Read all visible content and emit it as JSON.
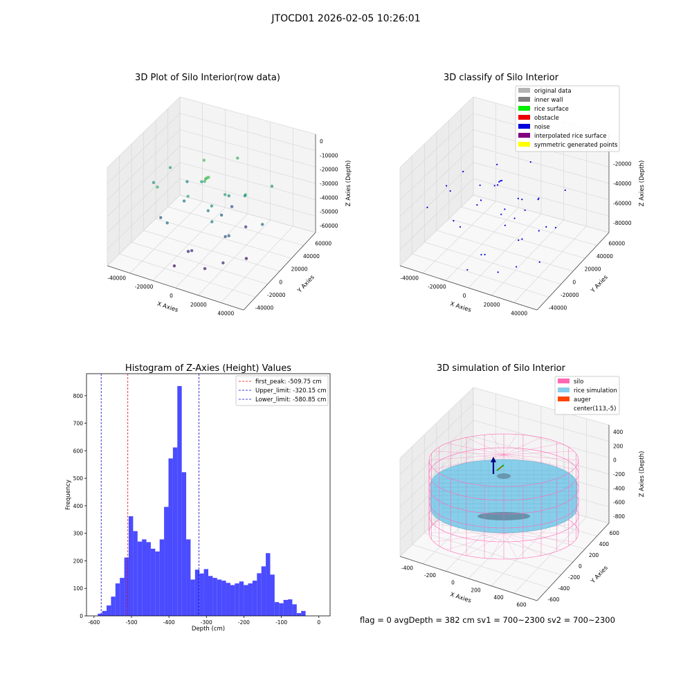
{
  "figure": {
    "title": "JTOCD01 2026-02-05 10:26:01",
    "status_line": "flag = 0     avgDepth = 382 cm  sv1 = 700~2300  sv2 = 700~2300"
  },
  "chart_data": [
    {
      "type": "scatter",
      "projection": "3d",
      "title": "3D Plot of Silo Interior(row data)",
      "xlabel": "X Axies",
      "ylabel": "Y Axies",
      "zlabel": "Z Axies (Depth)",
      "xticks": [
        "-40000",
        "-20000",
        "0",
        "20000",
        "40000"
      ],
      "yticks": [
        "-40000",
        "-20000",
        "0",
        "20000",
        "40000",
        "60000"
      ],
      "zticks": [
        "0",
        "-10000",
        "-20000",
        "-30000",
        "-40000",
        "-50000",
        "-60000"
      ],
      "xlim": [
        -50000,
        50000
      ],
      "ylim": [
        -45000,
        65000
      ],
      "zlim": [
        -70000,
        5000
      ],
      "colormap": "viridis",
      "points": [
        {
          "x": -2000,
          "y": 8000,
          "z": -15000
        },
        {
          "x": -2500,
          "y": 7000,
          "z": -15500
        },
        {
          "x": -1500,
          "y": 9000,
          "z": -15200
        },
        {
          "x": -3000,
          "y": 7500,
          "z": -16000
        },
        {
          "x": -40000,
          "y": 5000,
          "z": -30000
        },
        {
          "x": -30000,
          "y": -10000,
          "z": -22000
        },
        {
          "x": -15000,
          "y": 30000,
          "z": -18000
        },
        {
          "x": 0,
          "y": 50000,
          "z": -22000
        },
        {
          "x": 25000,
          "y": 10000,
          "z": -20000
        },
        {
          "x": 30000,
          "y": 40000,
          "z": -28000
        },
        {
          "x": -10000,
          "y": -5000,
          "z": -25000
        },
        {
          "x": 5000,
          "y": 0,
          "z": -30000
        },
        {
          "x": 10000,
          "y": -10000,
          "z": -35000
        },
        {
          "x": -20000,
          "y": 10000,
          "z": -40000
        },
        {
          "x": 0,
          "y": -20000,
          "z": -55000
        },
        {
          "x": 15000,
          "y": 0,
          "z": -50000
        },
        {
          "x": 5000,
          "y": 15000,
          "z": -45000
        },
        {
          "x": -5000,
          "y": -15000,
          "z": -60000
        },
        {
          "x": 12000,
          "y": -25000,
          "z": -62000
        },
        {
          "x": 20000,
          "y": -5000,
          "z": -45000
        },
        {
          "x": -25000,
          "y": 25000,
          "z": -35000
        },
        {
          "x": 35000,
          "y": 15000,
          "z": -42000
        },
        {
          "x": -30000,
          "y": -5000,
          "z": -48000
        },
        {
          "x": 0,
          "y": 5000,
          "z": -38000
        },
        {
          "x": 8000,
          "y": 20000,
          "z": -32000
        },
        {
          "x": -12000,
          "y": 20000,
          "z": -28000
        },
        {
          "x": 18000,
          "y": 25000,
          "z": -55000
        },
        {
          "x": -8000,
          "y": -30000,
          "z": -64000
        },
        {
          "x": 22000,
          "y": -18000,
          "z": -58000
        },
        {
          "x": 3000,
          "y": 35000,
          "z": -50000
        },
        {
          "x": -18000,
          "y": -20000,
          "z": -40000
        },
        {
          "x": 28000,
          "y": 5000,
          "z": -65000
        },
        {
          "x": -5000,
          "y": 10000,
          "z": -20000
        },
        {
          "x": 10000,
          "y": 10000,
          "z": -25000
        },
        {
          "x": 15000,
          "y": 30000,
          "z": -35000
        },
        {
          "x": -35000,
          "y": 20000,
          "z": -25000
        }
      ]
    },
    {
      "type": "scatter",
      "projection": "3d",
      "title": "3D classify of Silo Interior",
      "xlabel": "X Axies",
      "ylabel": "Y Axies",
      "zlabel": "Z Axies (Depth)",
      "xticks": [
        "-40000",
        "-20000",
        "0",
        "20000",
        "40000"
      ],
      "yticks": [
        "-40000",
        "-20000",
        "0",
        "20000",
        "40000",
        "60000"
      ],
      "zticks": [
        "0",
        "-20000",
        "-40000",
        "-60000",
        "-80000"
      ],
      "xlim": [
        -50000,
        50000
      ],
      "ylim": [
        -45000,
        65000
      ],
      "zlim": [
        -90000,
        10000
      ],
      "legend_position": "top-right",
      "legend": [
        {
          "label": "original data",
          "color": "#b3b3b3"
        },
        {
          "label": "inner wall",
          "color": "#808080"
        },
        {
          "label": "rice surface",
          "color": "#00ee00"
        },
        {
          "label": "obstacle",
          "color": "#ee0000"
        },
        {
          "label": "noise",
          "color": "#0000dd"
        },
        {
          "label": "interpolated rice surface",
          "color": "#800080"
        },
        {
          "label": "symmetric generated points",
          "color": "#ffff00"
        }
      ],
      "noise_points": [
        {
          "x": -2000,
          "y": 8000,
          "z": -20000
        },
        {
          "x": -2500,
          "y": 7000,
          "z": -20500
        },
        {
          "x": -1500,
          "y": 9000,
          "z": -20200
        },
        {
          "x": -40000,
          "y": 5000,
          "z": -40000
        },
        {
          "x": -30000,
          "y": -10000,
          "z": -30000
        },
        {
          "x": -15000,
          "y": 30000,
          "z": -25000
        },
        {
          "x": 0,
          "y": 50000,
          "z": -30000
        },
        {
          "x": 25000,
          "y": 10000,
          "z": -27000
        },
        {
          "x": 30000,
          "y": 40000,
          "z": -38000
        },
        {
          "x": -10000,
          "y": -5000,
          "z": -34000
        },
        {
          "x": 5000,
          "y": 0,
          "z": -40000
        },
        {
          "x": 10000,
          "y": -10000,
          "z": -47000
        },
        {
          "x": -20000,
          "y": 10000,
          "z": -54000
        },
        {
          "x": 0,
          "y": -20000,
          "z": -74000
        },
        {
          "x": 15000,
          "y": 0,
          "z": -67000
        },
        {
          "x": 5000,
          "y": 15000,
          "z": -60000
        },
        {
          "x": -5000,
          "y": -15000,
          "z": -80000
        },
        {
          "x": 12000,
          "y": -25000,
          "z": -83000
        },
        {
          "x": 20000,
          "y": -5000,
          "z": -60000
        },
        {
          "x": -25000,
          "y": 25000,
          "z": -47000
        },
        {
          "x": 35000,
          "y": 15000,
          "z": -56000
        },
        {
          "x": -30000,
          "y": -5000,
          "z": -64000
        },
        {
          "x": 0,
          "y": 5000,
          "z": -51000
        },
        {
          "x": 8000,
          "y": 20000,
          "z": -43000
        },
        {
          "x": -12000,
          "y": 20000,
          "z": -38000
        },
        {
          "x": 18000,
          "y": 25000,
          "z": -74000
        },
        {
          "x": -8000,
          "y": -30000,
          "z": -86000
        },
        {
          "x": 22000,
          "y": -18000,
          "z": -78000
        },
        {
          "x": 3000,
          "y": 35000,
          "z": -67000
        },
        {
          "x": -18000,
          "y": -20000,
          "z": -54000
        },
        {
          "x": 28000,
          "y": 5000,
          "z": -87000
        },
        {
          "x": -5000,
          "y": 10000,
          "z": -27000
        },
        {
          "x": 10000,
          "y": 10000,
          "z": -34000
        },
        {
          "x": 15000,
          "y": 30000,
          "z": -47000
        },
        {
          "x": -35000,
          "y": 20000,
          "z": -34000
        },
        {
          "x": 40000,
          "y": -10000,
          "z": -35000
        },
        {
          "x": -42000,
          "y": -20000,
          "z": -45000
        }
      ]
    },
    {
      "type": "bar",
      "title": "Histogram of Z-Axies (Height) Values",
      "xlabel": "Depth (cm)",
      "ylabel": "Frequency",
      "xlim": [
        -620,
        30
      ],
      "ylim": [
        0,
        880
      ],
      "xticks": [
        -600,
        -500,
        -400,
        -300,
        -200,
        -100,
        0
      ],
      "yticks": [
        0,
        100,
        200,
        300,
        400,
        500,
        600,
        700,
        800
      ],
      "bin_start": -590,
      "bin_width": 11.8,
      "color": "#4b4bff",
      "values": [
        8,
        18,
        38,
        70,
        118,
        138,
        212,
        362,
        308,
        270,
        278,
        268,
        244,
        234,
        278,
        396,
        572,
        612,
        835,
        522,
        278,
        132,
        168,
        154,
        170,
        145,
        138,
        132,
        128,
        120,
        112,
        118,
        125,
        112,
        118,
        128,
        155,
        180,
        228,
        150,
        50,
        46,
        58,
        60,
        42,
        10,
        18
      ],
      "legend_position": "top-right",
      "lines": [
        {
          "label": "first_peak: -509.75 cm",
          "x": -509.75,
          "color": "#ee0000"
        },
        {
          "label": "Upper_limit: -320.15 cm",
          "x": -320.15,
          "color": "#0000cc"
        },
        {
          "label": "Lower_limit: -580.85 cm",
          "x": -580.85,
          "color": "#0000cc"
        }
      ]
    },
    {
      "type": "surface",
      "projection": "3d",
      "title": "3D simulation of Silo Interior",
      "xlabel": "X Axies",
      "ylabel": "Y Axies",
      "zlabel": "Z Axies (Depth)",
      "xticks": [
        "-400",
        "-200",
        "0",
        "200",
        "400",
        "600"
      ],
      "yticks": [
        "-600",
        "-400",
        "-200",
        "0",
        "200",
        "400",
        "600"
      ],
      "zticks": [
        "400",
        "200",
        "0",
        "-200",
        "-400",
        "-600",
        "-800"
      ],
      "legend_position": "top-right",
      "legend": [
        {
          "label": "silo",
          "color": "#ff69b4"
        },
        {
          "label": "rice simulation",
          "color": "#87ceeb"
        },
        {
          "label": "auger",
          "color": "#ff4500"
        },
        {
          "label": "center(113,-5)",
          "color": ""
        }
      ],
      "silo_color": "#ff69b4",
      "rice_color": "#87ceeb"
    }
  ]
}
